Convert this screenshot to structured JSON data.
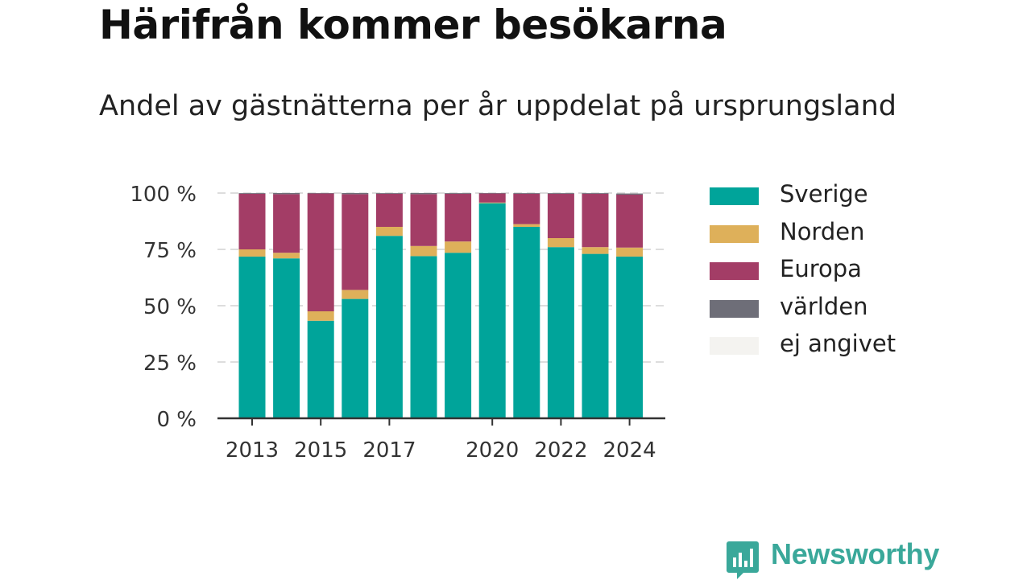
{
  "header": {
    "title": "Härifrån kommer besökarna",
    "subtitle": "Andel av gästnätterna per år uppdelat på ursprungsland"
  },
  "chart_data": {
    "type": "bar",
    "stacked": true,
    "categories": [
      "2013",
      "2014",
      "2015",
      "2016",
      "2017",
      "2018",
      "2019",
      "2020",
      "2021",
      "2022",
      "2023",
      "2024"
    ],
    "x_tick_labels": [
      "2013",
      "",
      "2015",
      "",
      "2017",
      "",
      "",
      "2020",
      "",
      "2022",
      "",
      "2024"
    ],
    "y_ticks": [
      0,
      25,
      50,
      75,
      100
    ],
    "y_tick_labels": [
      "0 %",
      "25 %",
      "50 %",
      "75 %",
      "100 %"
    ],
    "ylim": [
      0,
      100
    ],
    "grid": true,
    "legend_position": "right",
    "series": [
      {
        "name": "Sverige",
        "color": "#00a49a",
        "values": [
          71.8,
          71,
          43.3,
          53,
          81,
          72,
          73.5,
          95.5,
          85,
          76,
          73,
          71.8
        ]
      },
      {
        "name": "Norden",
        "color": "#deb05a",
        "values": [
          3.2,
          2.5,
          4.2,
          4,
          4,
          4.5,
          5,
          0.3,
          1.2,
          4,
          3,
          4
        ]
      },
      {
        "name": "Europa",
        "color": "#a33d66",
        "values": [
          24.7,
          26,
          52.3,
          42.5,
          14.7,
          23,
          21.2,
          4,
          13.5,
          19.7,
          23.7,
          23.5
        ]
      },
      {
        "name": "världen",
        "color": "#6e6e78",
        "values": [
          0.3,
          0.5,
          0.2,
          0.5,
          0.3,
          0.5,
          0.3,
          0.2,
          0.3,
          0.3,
          0.3,
          0.5
        ]
      },
      {
        "name": "ej angivet",
        "color": "#f4f3f0",
        "values": [
          0,
          0,
          0,
          0,
          0,
          0,
          0,
          0,
          0,
          0,
          0,
          0
        ]
      }
    ]
  },
  "logo": {
    "text": "Newsworthy",
    "color": "#3aa89a"
  }
}
